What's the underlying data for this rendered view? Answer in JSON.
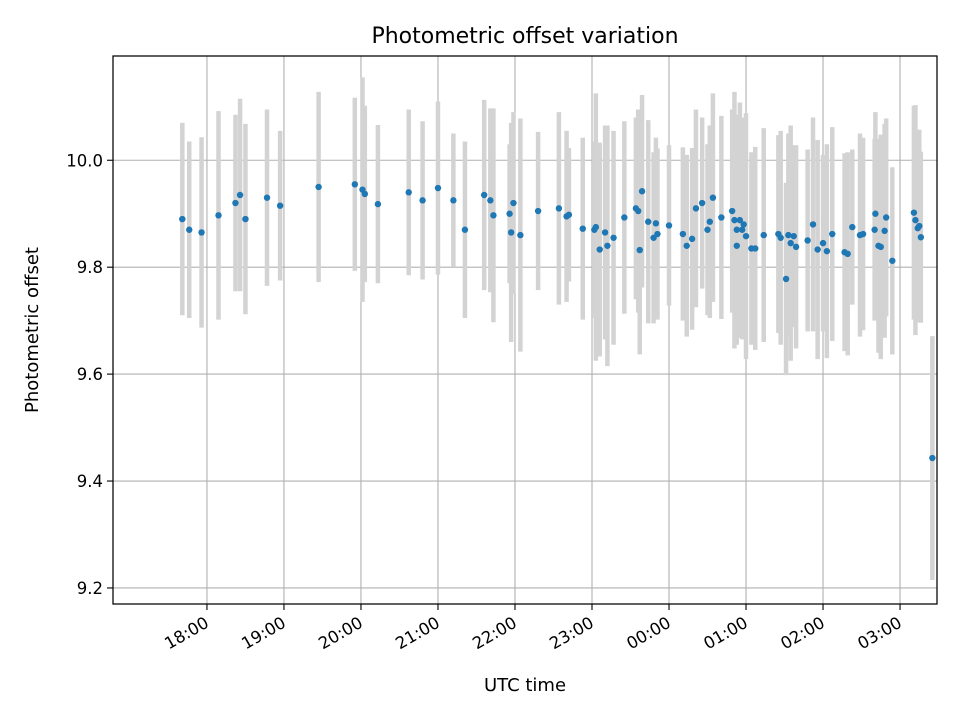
{
  "chart_data": {
    "type": "scatter",
    "title": "Photometric offset variation",
    "xlabel": "UTC time",
    "ylabel": "Photometric offset",
    "grid": true,
    "x_unit": "hours since 17:00 UTC",
    "xlim": [
      -0.22,
      10.48
    ],
    "ylim": [
      9.17,
      10.195
    ],
    "x_ticks": [
      {
        "x": 1,
        "label": "18:00"
      },
      {
        "x": 2,
        "label": "19:00"
      },
      {
        "x": 3,
        "label": "20:00"
      },
      {
        "x": 4,
        "label": "21:00"
      },
      {
        "x": 5,
        "label": "22:00"
      },
      {
        "x": 6,
        "label": "23:00"
      },
      {
        "x": 7,
        "label": "00:00"
      },
      {
        "x": 8,
        "label": "01:00"
      },
      {
        "x": 9,
        "label": "02:00"
      },
      {
        "x": 10,
        "label": "03:00"
      }
    ],
    "y_ticks": [
      {
        "y": 9.2,
        "label": "9.2"
      },
      {
        "y": 9.4,
        "label": "9.4"
      },
      {
        "y": 9.6,
        "label": "9.6"
      },
      {
        "y": 9.8,
        "label": "9.8"
      },
      {
        "y": 10.0,
        "label": "10.0"
      }
    ],
    "colors": {
      "point": "#1f77b4",
      "errorbar": "#d3d3d3",
      "grid": "#b0b0b0",
      "axes": "#000000"
    },
    "points": [
      [
        0.68,
        9.89,
        0.18
      ],
      [
        0.77,
        9.87,
        0.165
      ],
      [
        0.93,
        9.865,
        0.178
      ],
      [
        1.15,
        9.897,
        0.195
      ],
      [
        1.37,
        9.92,
        0.165
      ],
      [
        1.43,
        9.935,
        0.18
      ],
      [
        1.5,
        9.89,
        0.178
      ],
      [
        1.78,
        9.93,
        0.165
      ],
      [
        1.95,
        9.915,
        0.14
      ],
      [
        2.45,
        9.95,
        0.178
      ],
      [
        2.92,
        9.955,
        0.162
      ],
      [
        3.02,
        9.945,
        0.21
      ],
      [
        3.05,
        9.937,
        0.165
      ],
      [
        3.22,
        9.918,
        0.148
      ],
      [
        3.62,
        9.94,
        0.155
      ],
      [
        3.8,
        9.925,
        0.148
      ],
      [
        4.0,
        9.948,
        0.162
      ],
      [
        4.2,
        9.925,
        0.125
      ],
      [
        4.35,
        9.87,
        0.165
      ],
      [
        4.6,
        9.935,
        0.178
      ],
      [
        4.68,
        9.925,
        0.172
      ],
      [
        4.72,
        9.897,
        0.2
      ],
      [
        5.07,
        9.86,
        0.218
      ],
      [
        4.93,
        9.9,
        0.13
      ],
      [
        4.95,
        9.865,
        0.205
      ],
      [
        4.98,
        9.92,
        0.17
      ],
      [
        5.3,
        9.905,
        0.148
      ],
      [
        5.57,
        9.91,
        0.18
      ],
      [
        5.67,
        9.895,
        0.16
      ],
      [
        5.7,
        9.898,
        0.125
      ],
      [
        5.88,
        9.872,
        0.17
      ],
      [
        6.03,
        9.87,
        0.165
      ],
      [
        6.05,
        9.875,
        0.25
      ],
      [
        6.1,
        9.833,
        0.2
      ],
      [
        6.17,
        9.865,
        0.2
      ],
      [
        6.2,
        9.84,
        0.225
      ],
      [
        6.28,
        9.855,
        0.2
      ],
      [
        6.42,
        9.893,
        0.18
      ],
      [
        6.57,
        9.91,
        0.17
      ],
      [
        6.6,
        9.905,
        0.19
      ],
      [
        6.62,
        9.832,
        0.195
      ],
      [
        6.65,
        9.942,
        0.18
      ],
      [
        6.73,
        9.885,
        0.19
      ],
      [
        6.8,
        9.855,
        0.16
      ],
      [
        6.83,
        9.882,
        0.16
      ],
      [
        6.85,
        9.862,
        0.16
      ],
      [
        7.0,
        9.878,
        0.15
      ],
      [
        7.18,
        9.862,
        0.162
      ],
      [
        7.23,
        9.84,
        0.17
      ],
      [
        7.3,
        9.853,
        0.17
      ],
      [
        7.35,
        9.91,
        0.185
      ],
      [
        7.43,
        9.92,
        0.16
      ],
      [
        7.5,
        9.87,
        0.16
      ],
      [
        7.53,
        9.885,
        0.18
      ],
      [
        7.57,
        9.93,
        0.195
      ],
      [
        7.68,
        9.893,
        0.19
      ],
      [
        7.82,
        9.905,
        0.19
      ],
      [
        7.85,
        9.888,
        0.24
      ],
      [
        7.88,
        9.87,
        0.215
      ],
      [
        7.88,
        9.84,
        0.175
      ],
      [
        7.92,
        9.888,
        0.22
      ],
      [
        7.95,
        9.87,
        0.205
      ],
      [
        7.97,
        9.88,
        0.2
      ],
      [
        8.0,
        9.858,
        0.23
      ],
      [
        8.07,
        9.835,
        0.18
      ],
      [
        8.12,
        9.835,
        0.19
      ],
      [
        8.23,
        9.86,
        0.2
      ],
      [
        8.42,
        9.862,
        0.185
      ],
      [
        8.45,
        9.855,
        0.2
      ],
      [
        8.52,
        9.778,
        0.18
      ],
      [
        8.55,
        9.86,
        0.19
      ],
      [
        8.58,
        9.845,
        0.22
      ],
      [
        8.62,
        9.858,
        0.17
      ],
      [
        8.65,
        9.838,
        0.19
      ],
      [
        8.8,
        9.85,
        0.17
      ],
      [
        8.87,
        9.88,
        0.2
      ],
      [
        8.93,
        9.833,
        0.205
      ],
      [
        9.0,
        9.845,
        0.165
      ],
      [
        9.05,
        9.83,
        0.2
      ],
      [
        9.12,
        9.862,
        0.2
      ],
      [
        9.28,
        9.828,
        0.185
      ],
      [
        9.32,
        9.825,
        0.19
      ],
      [
        9.38,
        9.875,
        0.145
      ],
      [
        9.48,
        9.86,
        0.19
      ],
      [
        9.52,
        9.862,
        0.18
      ],
      [
        9.67,
        9.87,
        0.17
      ],
      [
        9.68,
        9.9,
        0.19
      ],
      [
        9.72,
        9.84,
        0.2
      ],
      [
        9.75,
        9.838,
        0.21
      ],
      [
        9.8,
        9.868,
        0.2
      ],
      [
        9.82,
        9.893,
        0.185
      ],
      [
        9.9,
        9.812,
        0.175
      ],
      [
        10.18,
        9.902,
        0.2
      ],
      [
        10.2,
        9.888,
        0.215
      ],
      [
        10.23,
        9.873,
        0.155
      ],
      [
        10.25,
        9.877,
        0.18
      ],
      [
        10.27,
        9.856,
        0.16
      ],
      [
        10.42,
        9.443,
        0.228
      ]
    ]
  }
}
